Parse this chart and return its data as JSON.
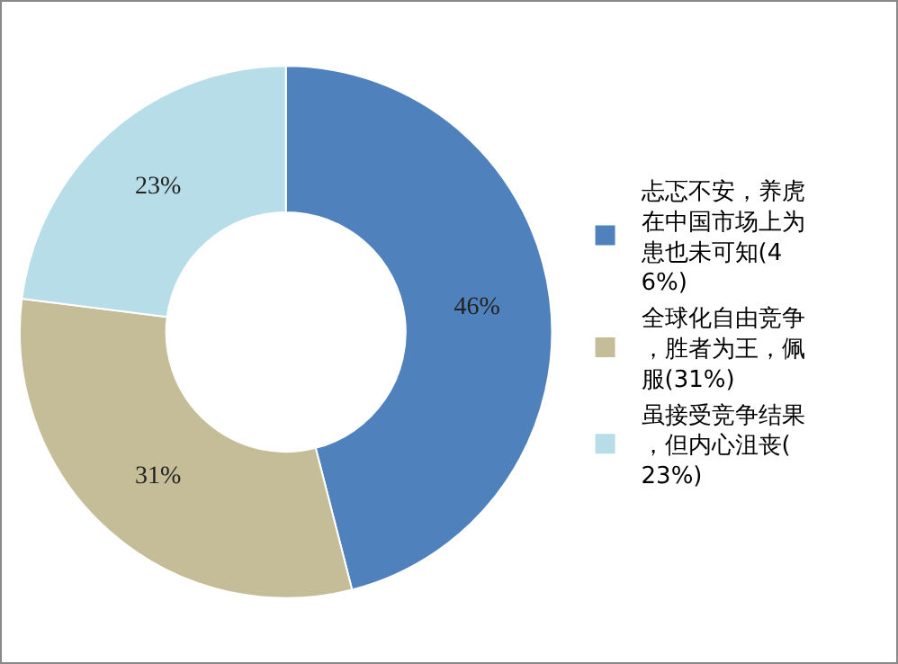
{
  "chart_data": {
    "type": "donut",
    "categories": [
      "忐忑不安，养虎在中国市场上为患也未可知(46%)",
      "全球化自由竞争，胜者为王，佩服(31%)",
      "虽接受竞争结果，但内心沮丧(23%)"
    ],
    "values": [
      46,
      31,
      23
    ],
    "colors": [
      "#4f81bd",
      "#c4bd97",
      "#b7dde8"
    ],
    "value_labels": [
      "46%",
      "31%",
      "23%"
    ],
    "legend": "right"
  }
}
